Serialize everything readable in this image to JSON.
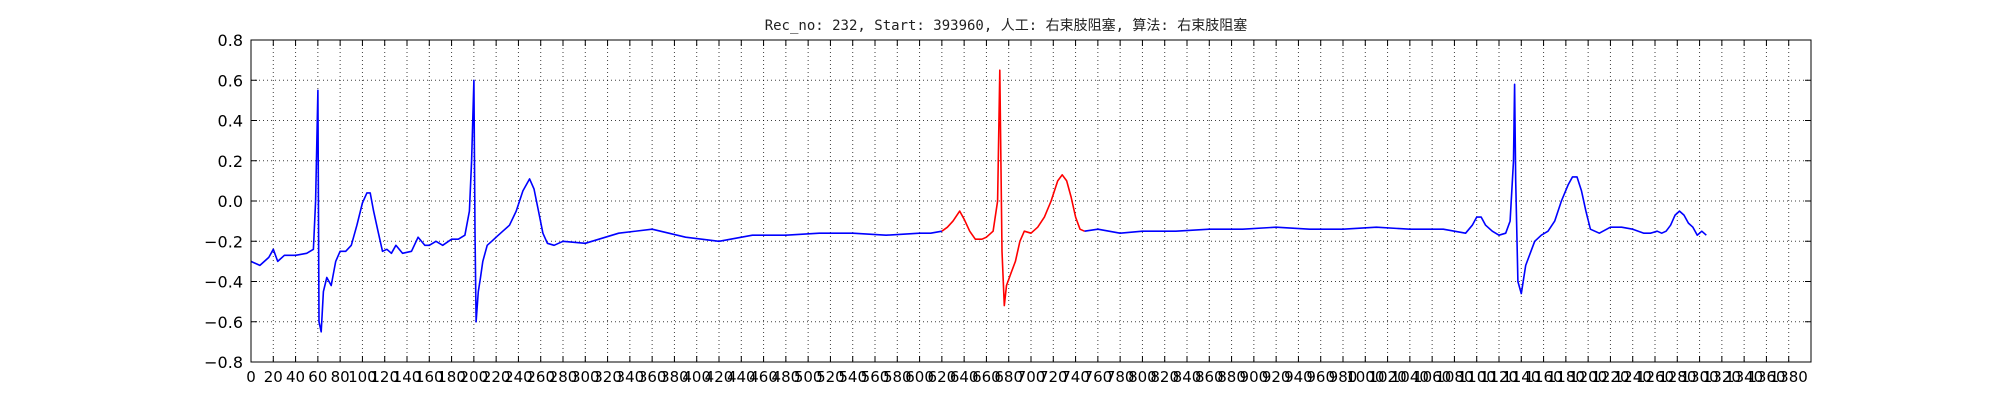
{
  "chart_data": {
    "type": "line",
    "title": "Rec_no: 232, Start: 393960, 人工: 右束肢阻塞, 算法: 右束肢阻塞",
    "xlabel": "",
    "ylabel": "",
    "xlim": [
      0,
      1400
    ],
    "ylim": [
      -0.8,
      0.8
    ],
    "grid": true,
    "yticks": [
      -0.8,
      -0.6,
      -0.4,
      -0.2,
      0.0,
      0.2,
      0.4,
      0.6,
      0.8
    ],
    "ytick_labels": [
      "−0.8",
      "−0.6",
      "−0.4",
      "−0.2",
      "0.0",
      "0.2",
      "0.4",
      "0.6",
      "0.8"
    ],
    "xticks": [
      0,
      20,
      40,
      60,
      80,
      100,
      120,
      140,
      160,
      180,
      200,
      220,
      240,
      260,
      280,
      300,
      320,
      340,
      360,
      380,
      400,
      420,
      440,
      460,
      480,
      500,
      520,
      540,
      560,
      580,
      600,
      620,
      640,
      660,
      680,
      700,
      720,
      740,
      760,
      780,
      800,
      820,
      840,
      860,
      880,
      900,
      920,
      940,
      960,
      980,
      1000,
      1020,
      1040,
      1060,
      1080,
      1100,
      1120,
      1140,
      1160,
      1180,
      1200,
      1220,
      1240,
      1260,
      1280,
      1300,
      1320,
      1340,
      1360,
      1380
    ],
    "series": [
      {
        "color": "#0000ff",
        "x": [
          0,
          8,
          16,
          20,
          24,
          30,
          40,
          50,
          56,
          58,
          60,
          61,
          63,
          65,
          68,
          72,
          76,
          80,
          85,
          90,
          95,
          100,
          104,
          107,
          110,
          114,
          118,
          122,
          126,
          130,
          136,
          144,
          150,
          156,
          160,
          166,
          172,
          180,
          186,
          192,
          196,
          198,
          200,
          201,
          202,
          204,
          206,
          208,
          212,
          216,
          220,
          226,
          232,
          238,
          244,
          250,
          254,
          258,
          262,
          266,
          272,
          280,
          300,
          330,
          360,
          390,
          420,
          450,
          480,
          510,
          540,
          570,
          600,
          610,
          620
        ],
        "y": [
          -0.3,
          -0.32,
          -0.28,
          -0.24,
          -0.3,
          -0.27,
          -0.27,
          -0.26,
          -0.24,
          0.0,
          0.55,
          -0.6,
          -0.65,
          -0.45,
          -0.38,
          -0.42,
          -0.3,
          -0.25,
          -0.25,
          -0.22,
          -0.12,
          -0.01,
          0.04,
          0.04,
          -0.05,
          -0.15,
          -0.25,
          -0.24,
          -0.26,
          -0.22,
          -0.26,
          -0.25,
          -0.18,
          -0.22,
          -0.22,
          -0.2,
          -0.22,
          -0.19,
          -0.19,
          -0.17,
          -0.05,
          0.2,
          0.6,
          -0.15,
          -0.6,
          -0.45,
          -0.38,
          -0.3,
          -0.22,
          -0.2,
          -0.18,
          -0.15,
          -0.12,
          -0.05,
          0.05,
          0.11,
          0.06,
          -0.05,
          -0.16,
          -0.21,
          -0.22,
          -0.2,
          -0.21,
          -0.16,
          -0.14,
          -0.18,
          -0.2,
          -0.17,
          -0.17,
          -0.16,
          -0.16,
          -0.17,
          -0.16,
          -0.16,
          -0.15
        ]
      },
      {
        "color": "#ff0000",
        "x": [
          620,
          625,
          630,
          636,
          640,
          645,
          650,
          656,
          660,
          666,
          670,
          672,
          674,
          676,
          678,
          682,
          686,
          690,
          694,
          700,
          706,
          712,
          718,
          724,
          728,
          732,
          736,
          740,
          744,
          748
        ],
        "y": [
          -0.15,
          -0.13,
          -0.1,
          -0.05,
          -0.09,
          -0.15,
          -0.19,
          -0.19,
          -0.18,
          -0.15,
          0.0,
          0.65,
          -0.25,
          -0.52,
          -0.42,
          -0.36,
          -0.3,
          -0.2,
          -0.15,
          -0.16,
          -0.13,
          -0.08,
          0.0,
          0.1,
          0.13,
          0.1,
          0.02,
          -0.08,
          -0.14,
          -0.15
        ]
      },
      {
        "color": "#0000ff",
        "x": [
          748,
          760,
          780,
          800,
          830,
          860,
          890,
          920,
          950,
          980,
          1010,
          1040,
          1070,
          1090,
          1096,
          1100,
          1104,
          1108,
          1114,
          1120,
          1126,
          1130,
          1133,
          1134,
          1135,
          1137,
          1140,
          1144,
          1148,
          1152,
          1158,
          1164,
          1170,
          1176,
          1182,
          1186,
          1190,
          1194,
          1198,
          1202,
          1210,
          1220,
          1230,
          1240,
          1250,
          1256,
          1262,
          1266,
          1270,
          1274,
          1278,
          1282,
          1286,
          1290,
          1294,
          1298,
          1302,
          1306
        ],
        "y": [
          -0.15,
          -0.14,
          -0.16,
          -0.15,
          -0.15,
          -0.14,
          -0.14,
          -0.13,
          -0.14,
          -0.14,
          -0.13,
          -0.14,
          -0.14,
          -0.16,
          -0.12,
          -0.08,
          -0.08,
          -0.12,
          -0.15,
          -0.17,
          -0.16,
          -0.1,
          0.2,
          0.58,
          0.1,
          -0.4,
          -0.46,
          -0.32,
          -0.26,
          -0.2,
          -0.17,
          -0.15,
          -0.1,
          0.0,
          0.08,
          0.12,
          0.12,
          0.05,
          -0.05,
          -0.14,
          -0.16,
          -0.13,
          -0.13,
          -0.14,
          -0.16,
          -0.16,
          -0.15,
          -0.16,
          -0.15,
          -0.12,
          -0.07,
          -0.05,
          -0.07,
          -0.11,
          -0.13,
          -0.17,
          -0.15,
          -0.17
        ]
      }
    ]
  }
}
